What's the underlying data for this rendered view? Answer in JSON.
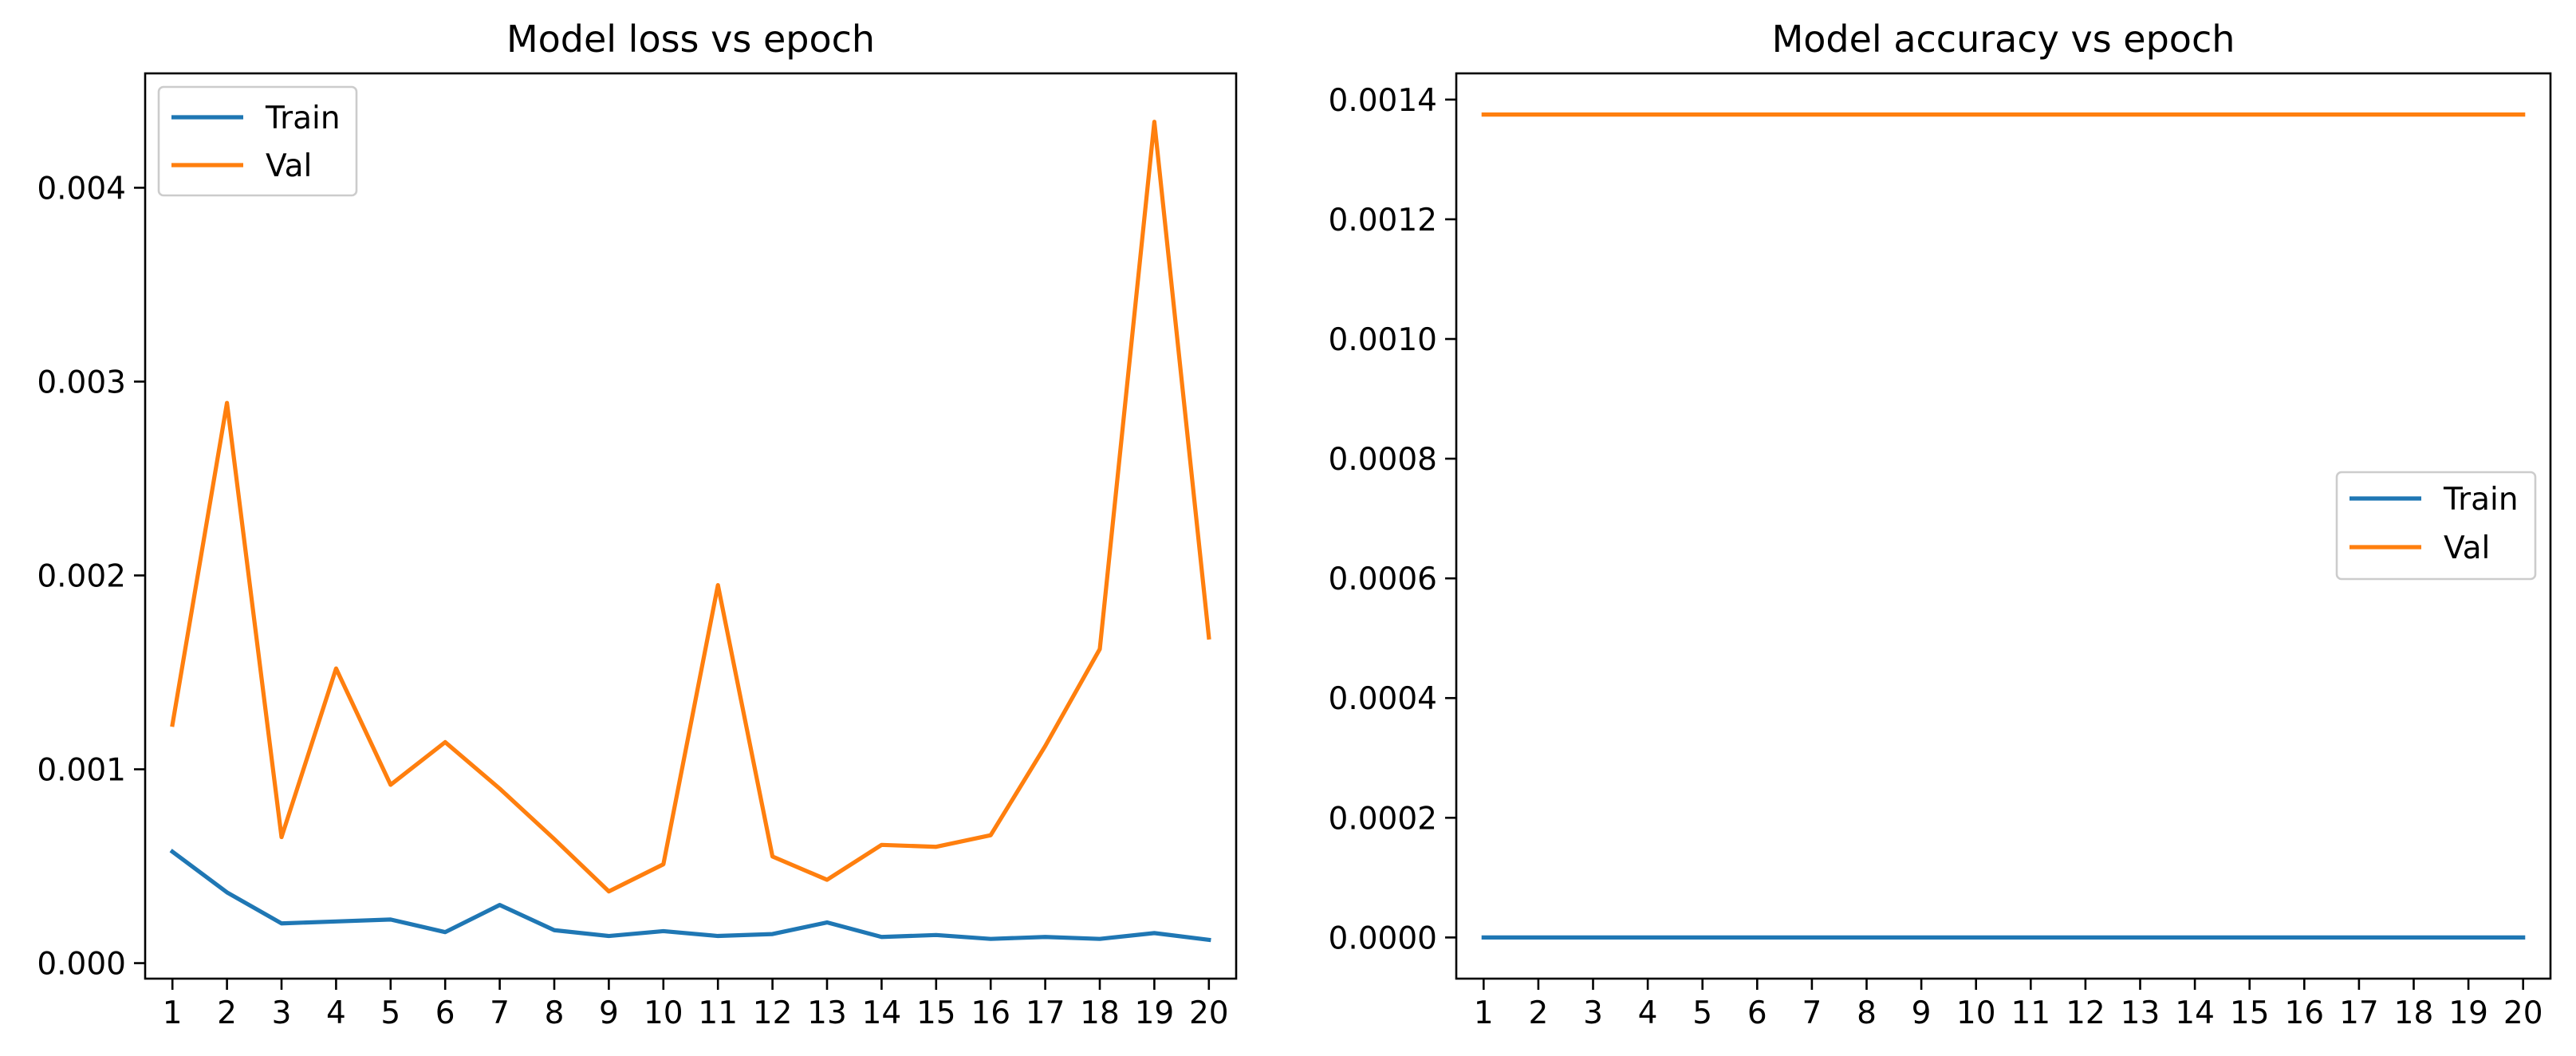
{
  "chart_data": [
    {
      "type": "line",
      "title": "Model loss vs epoch",
      "xlabel": "",
      "ylabel": "",
      "x": [
        1,
        2,
        3,
        4,
        5,
        6,
        7,
        8,
        9,
        10,
        11,
        12,
        13,
        14,
        15,
        16,
        17,
        18,
        19,
        20
      ],
      "xlim": [
        0.5,
        20.5
      ],
      "ylim": [
        -8e-05,
        0.00459
      ],
      "yticks": [
        0.0,
        0.001,
        0.002,
        0.003,
        0.004
      ],
      "ytick_labels": [
        "0.000",
        "0.001",
        "0.002",
        "0.003",
        "0.004"
      ],
      "grid": false,
      "legend": "upper-left",
      "series": [
        {
          "name": "Train",
          "color": "#1f77b4",
          "values": [
            0.000575,
            0.000365,
            0.000205,
            0.000215,
            0.000225,
            0.00016,
            0.0003,
            0.00017,
            0.00014,
            0.000165,
            0.00014,
            0.00015,
            0.00021,
            0.000135,
            0.000145,
            0.000125,
            0.000135,
            0.000125,
            0.000155,
            0.00012
          ]
        },
        {
          "name": "Val",
          "color": "#ff7f0e",
          "values": [
            0.00123,
            0.00289,
            0.00065,
            0.00152,
            0.00092,
            0.00114,
            0.0009,
            0.00064,
            0.00037,
            0.00051,
            0.00195,
            0.00055,
            0.00043,
            0.00061,
            0.0006,
            0.00066,
            0.00112,
            0.00162,
            0.00434,
            0.00168
          ]
        }
      ]
    },
    {
      "type": "line",
      "title": "Model accuracy vs epoch",
      "xlabel": "",
      "ylabel": "",
      "x": [
        1,
        2,
        3,
        4,
        5,
        6,
        7,
        8,
        9,
        10,
        11,
        12,
        13,
        14,
        15,
        16,
        17,
        18,
        19,
        20
      ],
      "xlim": [
        0.5,
        20.5
      ],
      "ylim": [
        -6.88e-05,
        0.0014438
      ],
      "yticks": [
        0.0,
        0.0002,
        0.0004,
        0.0006,
        0.0008,
        0.001,
        0.0012,
        0.0014
      ],
      "ytick_labels": [
        "0.0000",
        "0.0002",
        "0.0004",
        "0.0006",
        "0.0008",
        "0.0010",
        "0.0012",
        "0.0014"
      ],
      "grid": false,
      "legend": "center-right",
      "series": [
        {
          "name": "Train",
          "color": "#1f77b4",
          "values": [
            0,
            0,
            0,
            0,
            0,
            0,
            0,
            0,
            0,
            0,
            0,
            0,
            0,
            0,
            0,
            0,
            0,
            0,
            0,
            0
          ]
        },
        {
          "name": "Val",
          "color": "#ff7f0e",
          "values": [
            0.001375,
            0.001375,
            0.001375,
            0.001375,
            0.001375,
            0.001375,
            0.001375,
            0.001375,
            0.001375,
            0.001375,
            0.001375,
            0.001375,
            0.001375,
            0.001375,
            0.001375,
            0.001375,
            0.001375,
            0.001375,
            0.001375,
            0.001375
          ]
        }
      ]
    }
  ]
}
